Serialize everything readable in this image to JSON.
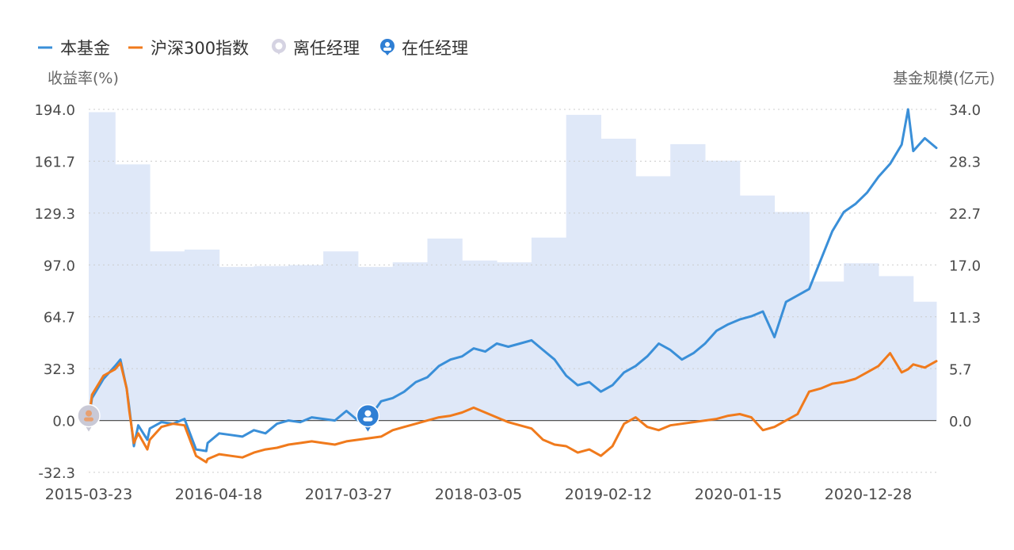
{
  "legend": {
    "fund": "本基金",
    "index": "沪深300指数",
    "former_manager": "离任经理",
    "current_manager": "在任经理"
  },
  "axes": {
    "left_title": "收益率(%)",
    "right_title": "基金规模(亿元)",
    "left_ticks": [
      "194.0",
      "161.7",
      "129.3",
      "97.0",
      "64.7",
      "32.3",
      "0.0",
      "-32.3"
    ],
    "right_ticks": [
      "34.0",
      "28.3",
      "22.7",
      "17.0",
      "11.3",
      "5.7",
      "0.0"
    ],
    "x_ticks": [
      "2015-03-23",
      "2016-04-18",
      "2017-03-27",
      "2018-03-05",
      "2019-02-12",
      "2020-01-15",
      "2020-12-28"
    ]
  },
  "colors": {
    "fund": "#3a8fd8",
    "index": "#f07a1c",
    "scale_area": "#dfe8f8",
    "grid": "#cccccc",
    "manager_current": "#2f7fd4",
    "manager_former": "#c9c9d6"
  },
  "chart_data": {
    "type": "line",
    "x_start": "2015-03-23",
    "x_end": "2021-05",
    "ylim_left": [
      -32.3,
      194.0
    ],
    "ylim_right": [
      0,
      34.0
    ],
    "series": [
      {
        "name": "本基金",
        "axis": "left",
        "x": [
          "2015-03-23",
          "2015-04",
          "2015-05",
          "2015-06",
          "2015-06-15",
          "2015-07",
          "2015-07-08",
          "2015-07-20",
          "2015-08",
          "2015-08-25",
          "2015-09",
          "2015-10",
          "2015-11",
          "2015-12",
          "2016-01",
          "2016-01-28",
          "2016-02",
          "2016-03",
          "2016-04",
          "2016-05",
          "2016-06",
          "2016-07",
          "2016-08",
          "2016-09",
          "2016-10",
          "2016-11",
          "2016-12",
          "2017-01",
          "2017-02",
          "2017-03",
          "2017-04",
          "2017-05",
          "2017-06",
          "2017-07",
          "2017-08",
          "2017-09",
          "2017-10",
          "2017-11",
          "2017-12",
          "2018-01",
          "2018-02",
          "2018-03",
          "2018-04",
          "2018-05",
          "2018-06",
          "2018-07",
          "2018-08",
          "2018-09",
          "2018-10",
          "2018-11",
          "2018-12",
          "2019-01",
          "2019-02",
          "2019-03",
          "2019-04",
          "2019-05",
          "2019-06",
          "2019-07",
          "2019-08",
          "2019-09",
          "2019-10",
          "2019-11",
          "2019-12",
          "2020-01",
          "2020-02",
          "2020-03",
          "2020-04",
          "2020-05",
          "2020-06",
          "2020-07",
          "2020-08",
          "2020-09",
          "2020-10",
          "2020-11",
          "2020-12",
          "2021-01",
          "2021-02",
          "2021-02-18",
          "2021-03",
          "2021-04",
          "2021-05"
        ],
        "values": [
          0.0,
          14,
          26,
          34,
          38,
          20,
          8,
          -16,
          -3,
          -12,
          -5,
          -1,
          -2,
          1,
          -18,
          -19,
          -14,
          -8,
          -9,
          -10,
          -6,
          -8,
          -2,
          0,
          -1,
          2,
          1,
          0,
          6,
          0,
          2,
          12,
          14,
          18,
          24,
          27,
          34,
          38,
          40,
          45,
          43,
          48,
          46,
          48,
          50,
          44,
          38,
          28,
          22,
          24,
          18,
          22,
          30,
          34,
          40,
          48,
          44,
          38,
          42,
          48,
          56,
          60,
          63,
          65,
          68,
          52,
          74,
          78,
          82,
          100,
          118,
          130,
          135,
          142,
          152,
          160,
          172,
          194,
          168,
          176,
          170
        ]
      },
      {
        "name": "沪深300指数",
        "axis": "left",
        "x": [
          "2015-03-23",
          "2015-04",
          "2015-05",
          "2015-06",
          "2015-06-15",
          "2015-07",
          "2015-07-08",
          "2015-07-20",
          "2015-08",
          "2015-08-25",
          "2015-09",
          "2015-10",
          "2015-11",
          "2015-12",
          "2016-01",
          "2016-01-28",
          "2016-02",
          "2016-03",
          "2016-04",
          "2016-05",
          "2016-06",
          "2016-07",
          "2016-08",
          "2016-09",
          "2016-10",
          "2016-11",
          "2016-12",
          "2017-01",
          "2017-02",
          "2017-03",
          "2017-04",
          "2017-05",
          "2017-06",
          "2017-07",
          "2017-08",
          "2017-09",
          "2017-10",
          "2017-11",
          "2017-12",
          "2018-01",
          "2018-02",
          "2018-03",
          "2018-04",
          "2018-05",
          "2018-06",
          "2018-07",
          "2018-08",
          "2018-09",
          "2018-10",
          "2018-11",
          "2018-12",
          "2019-01",
          "2019-02",
          "2019-03",
          "2019-04",
          "2019-05",
          "2019-06",
          "2019-07",
          "2019-08",
          "2019-09",
          "2019-10",
          "2019-11",
          "2019-12",
          "2020-01",
          "2020-02",
          "2020-03",
          "2020-04",
          "2020-05",
          "2020-06",
          "2020-07",
          "2020-08",
          "2020-09",
          "2020-10",
          "2020-11",
          "2020-12",
          "2021-01",
          "2021-02",
          "2021-02-18",
          "2021-03",
          "2021-04",
          "2021-05"
        ],
        "values": [
          0.0,
          16,
          28,
          32,
          36,
          20,
          6,
          -14,
          -8,
          -18,
          -12,
          -4,
          -2,
          -3,
          -22,
          -26,
          -24,
          -21,
          -22,
          -23,
          -20,
          -18,
          -17,
          -15,
          -14,
          -13,
          -14,
          -15,
          -13,
          -12,
          -11,
          -10,
          -6,
          -4,
          -2,
          0,
          2,
          3,
          5,
          8,
          5,
          2,
          -1,
          -3,
          -5,
          -12,
          -15,
          -16,
          -20,
          -18,
          -22,
          -16,
          -2,
          2,
          -4,
          -6,
          -3,
          -2,
          -1,
          0,
          1,
          3,
          4,
          2,
          -6,
          -4,
          0,
          4,
          18,
          20,
          23,
          24,
          26,
          30,
          34,
          42,
          30,
          32,
          35,
          33,
          37
        ]
      },
      {
        "name": "基金规模",
        "axis": "right",
        "type": "area",
        "x": [
          "2015-03",
          "2015-06",
          "2015-09",
          "2015-12",
          "2016-03",
          "2016-06",
          "2016-09",
          "2016-12",
          "2017-03",
          "2017-06",
          "2017-09",
          "2017-12",
          "2018-03",
          "2018-06",
          "2018-09",
          "2018-12",
          "2019-03",
          "2019-06",
          "2019-09",
          "2019-12",
          "2020-03",
          "2020-06",
          "2020-09",
          "2020-12",
          "2021-03"
        ],
        "values": [
          33.7,
          28.0,
          18.5,
          18.7,
          16.8,
          16.9,
          17.0,
          18.5,
          16.8,
          17.3,
          19.9,
          17.5,
          17.3,
          20.0,
          33.4,
          30.8,
          26.7,
          30.2,
          28.4,
          24.6,
          22.8,
          15.2,
          17.2,
          15.8,
          13.0
        ]
      }
    ],
    "manager_markers": [
      {
        "type": "离任经理",
        "x": "2015-03-23",
        "y": 0.0
      },
      {
        "type": "在任经理",
        "x": "2017-03-27",
        "y": 0.0
      }
    ],
    "grid": true,
    "legend": "top-left"
  }
}
